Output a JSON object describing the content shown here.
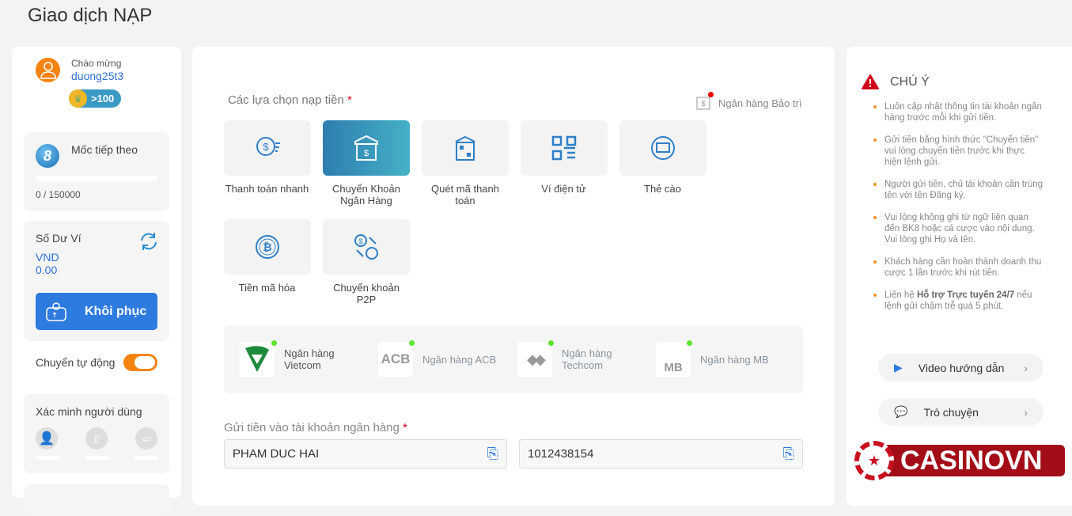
{
  "page_title": "Giao dịch NẠP",
  "user": {
    "greeting": "Chào mừng",
    "username": "duong25t3",
    "level": ">100"
  },
  "milestone": {
    "label": "Mốc tiếp theo",
    "progress_text": "0 / 150000",
    "progress": 0
  },
  "wallet": {
    "label": "Số Dư Ví",
    "currency": "VND",
    "amount": "0.00",
    "restore_button": "Khôi phục"
  },
  "auto_transfer": {
    "label": "Chuyển tự động",
    "enabled": true
  },
  "verify": {
    "label": "Xác minh người dùng"
  },
  "methods": {
    "label": "Các lựa chọn nạp tiền",
    "required": "*",
    "maintenance": "Ngân hàng Bảo trì",
    "items": [
      {
        "label": "Thanh toán nhanh",
        "icon": "fast-pay-icon"
      },
      {
        "label": "Chuyển Khoản Ngân Hàng",
        "icon": "bank-transfer-icon",
        "active": true
      },
      {
        "label": "Quét mã thanh toán",
        "icon": "scan-qr-icon"
      },
      {
        "label": "Ví điện tử",
        "icon": "qr-wallet-icon"
      },
      {
        "label": "Thẻ cào",
        "icon": "card-icon"
      },
      {
        "label": "Tiền mã hóa",
        "icon": "bitcoin-icon"
      },
      {
        "label": "Chuyển khoản P2P",
        "icon": "p2p-icon"
      }
    ]
  },
  "banks": [
    {
      "name": "Ngân hàng Vietcom",
      "logo": "V"
    },
    {
      "name": "Ngân hàng ACB",
      "logo": "ACB"
    },
    {
      "name": "Ngân hàng Techcom",
      "logo": "◆◆"
    },
    {
      "name": "Ngân hàng MB",
      "logo": "MB"
    }
  ],
  "deposit": {
    "label": "Gửi tiền vào tài khoản ngân hàng",
    "required": "*",
    "account_name": "PHAM DUC HAI",
    "account_number": "1012438154"
  },
  "notice": {
    "title": "CHÚ Ý",
    "items": [
      "Luôn cập nhật thông tin tài khoản ngân hàng trước mỗi khi gửi tiền.",
      "Gửi tiền bằng hình thức \"Chuyển tiền\" vui lòng chuyển tiền trước khi thực hiện lệnh gửi.",
      "Người gửi tiền, chủ tài khoản cần trùng tên với tên Đăng ký.",
      "Vui lòng không ghi từ ngữ liên quan đến BK8 hoặc cá cược vào nội dung. Vui lòng ghi Họ và tên.",
      "Khách hàng cần hoàn thành doanh thu cược 1 lần trước khi rút tiền."
    ],
    "last_pre": "Liên hệ ",
    "last_bold": "Hỗ trợ Trực tuyến 24/7",
    "last_post": " nếu lệnh gửi chậm trễ quá 5 phút."
  },
  "help": {
    "video": "Video hướng dẫn",
    "chat": "Trò chuyện"
  },
  "logo": "CASINOVN",
  "colors": {
    "accent": "#2e7be0",
    "orange": "#f5830f",
    "teal": "#3a9fc0",
    "required": "#d0021b"
  }
}
